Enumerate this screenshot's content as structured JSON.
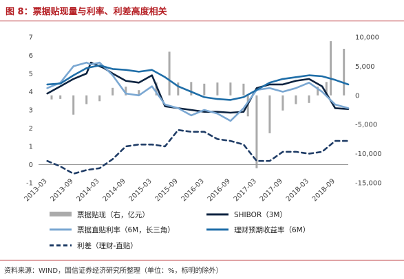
{
  "header": {
    "title": "图 8：票据贴现量与利率、利差高度相关"
  },
  "footer": {
    "source": "资料来源：WIND，国信证券经济研究所整理（单位：%，标明的除外）"
  },
  "colors": {
    "bars": "#aaaaaa",
    "shibor": "#0c2340",
    "discount_rate": "#7aa7d2",
    "wealth_yield": "#1f6ea8",
    "spread": "#1f3c66",
    "title_accent": "#b52025"
  },
  "chart_data": {
    "type": "line",
    "x_tick_labels": [
      "2013-03",
      "2013-09",
      "2014-03",
      "2014-09",
      "2015-03",
      "2015-09",
      "2016-03",
      "2016-09",
      "2017-03",
      "2017-09",
      "2018-03",
      "2018-09"
    ],
    "x_range": [
      "2013-01",
      "2018-12"
    ],
    "y_left": {
      "range": [
        -1,
        7
      ],
      "ticks": [
        -1,
        0,
        1,
        2,
        3,
        4,
        5,
        6,
        7
      ]
    },
    "y_right": {
      "range": [
        -15000,
        10000
      ],
      "ticks": [
        "-15,000",
        "-10,000",
        "-5,000",
        "0",
        "5,000",
        "10,000"
      ]
    },
    "legend": {
      "position": "bottom"
    },
    "grid": false,
    "bars": {
      "name": "票据贴现（右，亿元）",
      "axis": "right",
      "points": [
        {
          "x": "2013-04",
          "y": -700
        },
        {
          "x": "2013-06",
          "y": -600
        },
        {
          "x": "2013-09",
          "y": -3300
        },
        {
          "x": "2013-12",
          "y": -1500
        },
        {
          "x": "2014-03",
          "y": -1000
        },
        {
          "x": "2014-06",
          "y": 1300
        },
        {
          "x": "2014-09",
          "y": 1500
        },
        {
          "x": "2014-12",
          "y": 900
        },
        {
          "x": "2015-04",
          "y": 2200
        },
        {
          "x": "2015-07",
          "y": 7500
        },
        {
          "x": "2015-09",
          "y": 2200
        },
        {
          "x": "2015-12",
          "y": 2300
        },
        {
          "x": "2016-03",
          "y": 2000
        },
        {
          "x": "2016-06",
          "y": 2200
        },
        {
          "x": "2016-09",
          "y": 2200
        },
        {
          "x": "2016-12",
          "y": 2000
        },
        {
          "x": "2017-01",
          "y": -3600
        },
        {
          "x": "2017-03",
          "y": -12500
        },
        {
          "x": "2017-06",
          "y": -6500
        },
        {
          "x": "2017-09",
          "y": -2600
        },
        {
          "x": "2017-12",
          "y": -1500
        },
        {
          "x": "2018-03",
          "y": -1300
        },
        {
          "x": "2018-05",
          "y": 1500
        },
        {
          "x": "2018-07",
          "y": 2300
        },
        {
          "x": "2018-08",
          "y": 9300
        },
        {
          "x": "2018-11",
          "y": 8000
        }
      ]
    },
    "series": [
      {
        "name": "SHIBOR（3M）",
        "axis": "left",
        "points": [
          {
            "x": "2013-03",
            "y": 3.9
          },
          {
            "x": "2013-06",
            "y": 4.3
          },
          {
            "x": "2013-09",
            "y": 4.7
          },
          {
            "x": "2013-12",
            "y": 5.0
          },
          {
            "x": "2014-01",
            "y": 5.6
          },
          {
            "x": "2014-02",
            "y": 5.5
          },
          {
            "x": "2014-04",
            "y": 5.3
          },
          {
            "x": "2014-06",
            "y": 5.0
          },
          {
            "x": "2014-09",
            "y": 4.6
          },
          {
            "x": "2014-12",
            "y": 4.5
          },
          {
            "x": "2015-03",
            "y": 4.9
          },
          {
            "x": "2015-06",
            "y": 3.2
          },
          {
            "x": "2015-09",
            "y": 3.1
          },
          {
            "x": "2015-12",
            "y": 3.0
          },
          {
            "x": "2016-03",
            "y": 2.9
          },
          {
            "x": "2016-06",
            "y": 2.9
          },
          {
            "x": "2016-09",
            "y": 2.85
          },
          {
            "x": "2016-12",
            "y": 2.9
          },
          {
            "x": "2017-03",
            "y": 4.2
          },
          {
            "x": "2017-06",
            "y": 4.4
          },
          {
            "x": "2017-09",
            "y": 4.4
          },
          {
            "x": "2017-12",
            "y": 4.6
          },
          {
            "x": "2018-03",
            "y": 4.7
          },
          {
            "x": "2018-06",
            "y": 4.3
          },
          {
            "x": "2018-09",
            "y": 3.1
          },
          {
            "x": "2018-12",
            "y": 3.05
          }
        ]
      },
      {
        "name": "票据直贴利率（6M，长三角）",
        "axis": "left",
        "points": [
          {
            "x": "2013-03",
            "y": 4.2
          },
          {
            "x": "2013-06",
            "y": 4.5
          },
          {
            "x": "2013-09",
            "y": 5.4
          },
          {
            "x": "2013-12",
            "y": 5.6
          },
          {
            "x": "2014-01",
            "y": 5.5
          },
          {
            "x": "2014-03",
            "y": 5.6
          },
          {
            "x": "2014-06",
            "y": 4.9
          },
          {
            "x": "2014-09",
            "y": 3.9
          },
          {
            "x": "2014-12",
            "y": 3.8
          },
          {
            "x": "2015-03",
            "y": 4.3
          },
          {
            "x": "2015-06",
            "y": 3.3
          },
          {
            "x": "2015-09",
            "y": 3.1
          },
          {
            "x": "2015-12",
            "y": 2.7
          },
          {
            "x": "2016-03",
            "y": 3.0
          },
          {
            "x": "2016-06",
            "y": 2.8
          },
          {
            "x": "2016-09",
            "y": 2.4
          },
          {
            "x": "2016-12",
            "y": 3.1
          },
          {
            "x": "2017-03",
            "y": 4.1
          },
          {
            "x": "2017-06",
            "y": 4.2
          },
          {
            "x": "2017-09",
            "y": 4.0
          },
          {
            "x": "2017-12",
            "y": 4.2
          },
          {
            "x": "2018-03",
            "y": 4.5
          },
          {
            "x": "2018-06",
            "y": 4.0
          },
          {
            "x": "2018-09",
            "y": 3.3
          },
          {
            "x": "2018-12",
            "y": 3.1
          }
        ]
      },
      {
        "name": "理财预期收益率（6M）",
        "axis": "left",
        "points": [
          {
            "x": "2013-03",
            "y": 4.4
          },
          {
            "x": "2013-06",
            "y": 4.45
          },
          {
            "x": "2013-09",
            "y": 4.9
          },
          {
            "x": "2013-12",
            "y": 5.3
          },
          {
            "x": "2014-03",
            "y": 5.45
          },
          {
            "x": "2014-06",
            "y": 5.25
          },
          {
            "x": "2014-09",
            "y": 5.2
          },
          {
            "x": "2014-12",
            "y": 5.1
          },
          {
            "x": "2015-03",
            "y": 5.2
          },
          {
            "x": "2015-06",
            "y": 4.8
          },
          {
            "x": "2015-09",
            "y": 4.3
          },
          {
            "x": "2015-12",
            "y": 4.0
          },
          {
            "x": "2016-03",
            "y": 3.7
          },
          {
            "x": "2016-06",
            "y": 3.6
          },
          {
            "x": "2016-09",
            "y": 3.55
          },
          {
            "x": "2016-12",
            "y": 3.7
          },
          {
            "x": "2017-03",
            "y": 4.1
          },
          {
            "x": "2017-06",
            "y": 4.5
          },
          {
            "x": "2017-09",
            "y": 4.7
          },
          {
            "x": "2017-12",
            "y": 4.8
          },
          {
            "x": "2018-03",
            "y": 4.9
          },
          {
            "x": "2018-06",
            "y": 4.85
          },
          {
            "x": "2018-09",
            "y": 4.65
          },
          {
            "x": "2018-12",
            "y": 4.4
          }
        ]
      },
      {
        "name": "利差（理财-直贴）",
        "axis": "left",
        "dashed": true,
        "points": [
          {
            "x": "2013-03",
            "y": 0.2
          },
          {
            "x": "2013-06",
            "y": -0.1
          },
          {
            "x": "2013-09",
            "y": -0.5
          },
          {
            "x": "2013-12",
            "y": -0.3
          },
          {
            "x": "2014-03",
            "y": -0.2
          },
          {
            "x": "2014-06",
            "y": 0.3
          },
          {
            "x": "2014-09",
            "y": 1.0
          },
          {
            "x": "2014-12",
            "y": 1.1
          },
          {
            "x": "2015-03",
            "y": 1.1
          },
          {
            "x": "2015-06",
            "y": 1.0
          },
          {
            "x": "2015-09",
            "y": 1.9
          },
          {
            "x": "2015-12",
            "y": 1.8
          },
          {
            "x": "2016-03",
            "y": 1.8
          },
          {
            "x": "2016-06",
            "y": 1.4
          },
          {
            "x": "2016-09",
            "y": 1.3
          },
          {
            "x": "2016-12",
            "y": 1.1
          },
          {
            "x": "2017-03",
            "y": 0.2
          },
          {
            "x": "2017-06",
            "y": 0.2
          },
          {
            "x": "2017-09",
            "y": 0.7
          },
          {
            "x": "2017-12",
            "y": 0.7
          },
          {
            "x": "2018-03",
            "y": 0.6
          },
          {
            "x": "2018-06",
            "y": 0.7
          },
          {
            "x": "2018-09",
            "y": 1.3
          },
          {
            "x": "2018-12",
            "y": 1.3
          }
        ]
      }
    ]
  }
}
